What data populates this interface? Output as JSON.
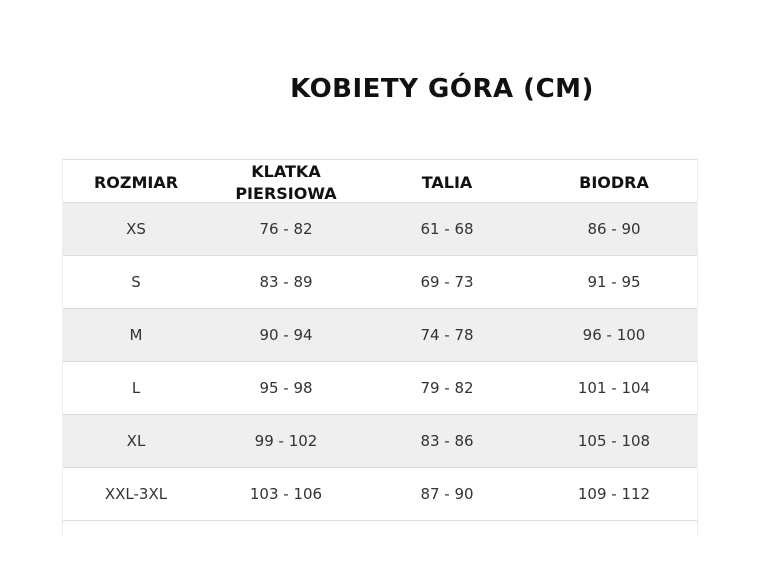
{
  "title": "KOBIETY GÓRA (CM)",
  "table": {
    "header": [
      "ROZMIAR",
      "KLATKA PIERSIOWA",
      "TALIA",
      "BIODRA"
    ],
    "rows": [
      [
        "XS",
        "76 - 82",
        "61 - 68",
        "86 - 90"
      ],
      [
        "S",
        "83 - 89",
        "69 - 73",
        "91 - 95"
      ],
      [
        "M",
        "90 - 94",
        "74 - 78",
        "96 - 100"
      ],
      [
        "L",
        "95 - 98",
        "79 - 82",
        "101 - 104"
      ],
      [
        "XL",
        "99 - 102",
        "83 - 86",
        "105 - 108"
      ],
      [
        "XXL-3XL",
        "103 - 106",
        "87 - 90",
        "109 - 112"
      ]
    ]
  }
}
